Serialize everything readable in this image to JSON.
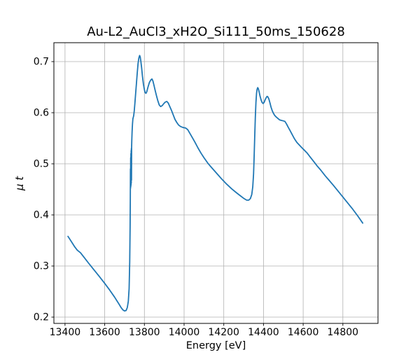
{
  "chart_data": {
    "type": "line",
    "title": "Au-L2_AuCl3_xH2O_Si111_50ms_150628",
    "xlabel": "Energy [eV]",
    "ylabel": "μ t",
    "xlim": [
      13344,
      14977
    ],
    "ylim": [
      0.1877,
      0.737
    ],
    "xticks": [
      13400,
      13600,
      13800,
      14000,
      14200,
      14400,
      14600,
      14800
    ],
    "xtick_labels": [
      "13400",
      "13600",
      "13800",
      "14000",
      "14200",
      "14400",
      "14600",
      "14800"
    ],
    "yticks": [
      0.2,
      0.3,
      0.4,
      0.5,
      0.6,
      0.7
    ],
    "ytick_labels": [
      "0.2",
      "0.3",
      "0.4",
      "0.5",
      "0.6",
      "0.7"
    ],
    "grid": true,
    "legend": false,
    "line_color": "#1f77b4",
    "grid_color": "#b0b0b0",
    "background_color": "#ffffff",
    "series": [
      {
        "name": "mu_t_absorption_spectrum",
        "points": [
          [
            13415,
            0.358
          ],
          [
            13430,
            0.349
          ],
          [
            13448,
            0.338
          ],
          [
            13462,
            0.331
          ],
          [
            13478,
            0.326
          ],
          [
            13500,
            0.315
          ],
          [
            13520,
            0.305
          ],
          [
            13545,
            0.293
          ],
          [
            13570,
            0.281
          ],
          [
            13600,
            0.266
          ],
          [
            13625,
            0.253
          ],
          [
            13650,
            0.239
          ],
          [
            13668,
            0.228
          ],
          [
            13682,
            0.219
          ],
          [
            13692,
            0.214
          ],
          [
            13700,
            0.212
          ],
          [
            13708,
            0.213
          ],
          [
            13714,
            0.219
          ],
          [
            13719,
            0.231
          ],
          [
            13723,
            0.256
          ],
          [
            13726,
            0.308
          ],
          [
            13728,
            0.378
          ],
          [
            13729,
            0.432
          ],
          [
            13729.6,
            0.49
          ],
          [
            13730.2,
            0.452
          ],
          [
            13730.8,
            0.512
          ],
          [
            13731.4,
            0.455
          ],
          [
            13732,
            0.52
          ],
          [
            13732.6,
            0.458
          ],
          [
            13733.2,
            0.526
          ],
          [
            13733.8,
            0.462
          ],
          [
            13734.4,
            0.53
          ],
          [
            13735,
            0.468
          ],
          [
            13735.6,
            0.532
          ],
          [
            13736.5,
            0.546
          ],
          [
            13738,
            0.563
          ],
          [
            13740,
            0.578
          ],
          [
            13742,
            0.588
          ],
          [
            13744,
            0.591
          ],
          [
            13746,
            0.594
          ],
          [
            13749,
            0.604
          ],
          [
            13752,
            0.618
          ],
          [
            13756,
            0.638
          ],
          [
            13760,
            0.658
          ],
          [
            13764,
            0.678
          ],
          [
            13768,
            0.696
          ],
          [
            13772,
            0.707
          ],
          [
            13776,
            0.712
          ],
          [
            13779,
            0.709
          ],
          [
            13782,
            0.701
          ],
          [
            13786,
            0.688
          ],
          [
            13790,
            0.672
          ],
          [
            13795,
            0.656
          ],
          [
            13800,
            0.645
          ],
          [
            13804,
            0.639
          ],
          [
            13808,
            0.638
          ],
          [
            13812,
            0.641
          ],
          [
            13818,
            0.65
          ],
          [
            13825,
            0.659
          ],
          [
            13832,
            0.664
          ],
          [
            13838,
            0.666
          ],
          [
            13843,
            0.662
          ],
          [
            13848,
            0.654
          ],
          [
            13854,
            0.644
          ],
          [
            13861,
            0.633
          ],
          [
            13868,
            0.623
          ],
          [
            13875,
            0.615
          ],
          [
            13882,
            0.612
          ],
          [
            13890,
            0.614
          ],
          [
            13898,
            0.618
          ],
          [
            13906,
            0.621
          ],
          [
            13913,
            0.622
          ],
          [
            13920,
            0.619
          ],
          [
            13928,
            0.612
          ],
          [
            13936,
            0.605
          ],
          [
            13945,
            0.596
          ],
          [
            13954,
            0.587
          ],
          [
            13963,
            0.581
          ],
          [
            13972,
            0.576
          ],
          [
            13982,
            0.573
          ],
          [
            13995,
            0.571
          ],
          [
            14008,
            0.57
          ],
          [
            14018,
            0.567
          ],
          [
            14030,
            0.559
          ],
          [
            14042,
            0.551
          ],
          [
            14055,
            0.542
          ],
          [
            14070,
            0.531
          ],
          [
            14085,
            0.521
          ],
          [
            14100,
            0.512
          ],
          [
            14120,
            0.501
          ],
          [
            14140,
            0.492
          ],
          [
            14165,
            0.481
          ],
          [
            14190,
            0.47
          ],
          [
            14215,
            0.46
          ],
          [
            14240,
            0.451
          ],
          [
            14265,
            0.443
          ],
          [
            14285,
            0.437
          ],
          [
            14302,
            0.432
          ],
          [
            14315,
            0.429
          ],
          [
            14326,
            0.429
          ],
          [
            14334,
            0.432
          ],
          [
            14341,
            0.44
          ],
          [
            14346,
            0.455
          ],
          [
            14350,
            0.48
          ],
          [
            14353,
            0.515
          ],
          [
            14356,
            0.555
          ],
          [
            14359,
            0.592
          ],
          [
            14362,
            0.62
          ],
          [
            14365,
            0.638
          ],
          [
            14368,
            0.646
          ],
          [
            14371,
            0.649
          ],
          [
            14374,
            0.647
          ],
          [
            14378,
            0.641
          ],
          [
            14383,
            0.632
          ],
          [
            14388,
            0.625
          ],
          [
            14393,
            0.62
          ],
          [
            14398,
            0.618
          ],
          [
            14403,
            0.62
          ],
          [
            14408,
            0.625
          ],
          [
            14413,
            0.629
          ],
          [
            14418,
            0.632
          ],
          [
            14422,
            0.631
          ],
          [
            14427,
            0.627
          ],
          [
            14432,
            0.62
          ],
          [
            14438,
            0.611
          ],
          [
            14444,
            0.604
          ],
          [
            14450,
            0.599
          ],
          [
            14456,
            0.595
          ],
          [
            14463,
            0.592
          ],
          [
            14472,
            0.589
          ],
          [
            14481,
            0.586
          ],
          [
            14490,
            0.585
          ],
          [
            14500,
            0.584
          ],
          [
            14508,
            0.583
          ],
          [
            14516,
            0.578
          ],
          [
            14524,
            0.572
          ],
          [
            14534,
            0.565
          ],
          [
            14545,
            0.557
          ],
          [
            14556,
            0.549
          ],
          [
            14568,
            0.542
          ],
          [
            14580,
            0.537
          ],
          [
            14592,
            0.532
          ],
          [
            14605,
            0.527
          ],
          [
            14620,
            0.521
          ],
          [
            14636,
            0.513
          ],
          [
            14652,
            0.505
          ],
          [
            14670,
            0.496
          ],
          [
            14690,
            0.487
          ],
          [
            14710,
            0.477
          ],
          [
            14730,
            0.468
          ],
          [
            14752,
            0.458
          ],
          [
            14775,
            0.447
          ],
          [
            14800,
            0.435
          ],
          [
            14825,
            0.423
          ],
          [
            14850,
            0.411
          ],
          [
            14875,
            0.398
          ],
          [
            14900,
            0.384
          ]
        ]
      }
    ]
  }
}
